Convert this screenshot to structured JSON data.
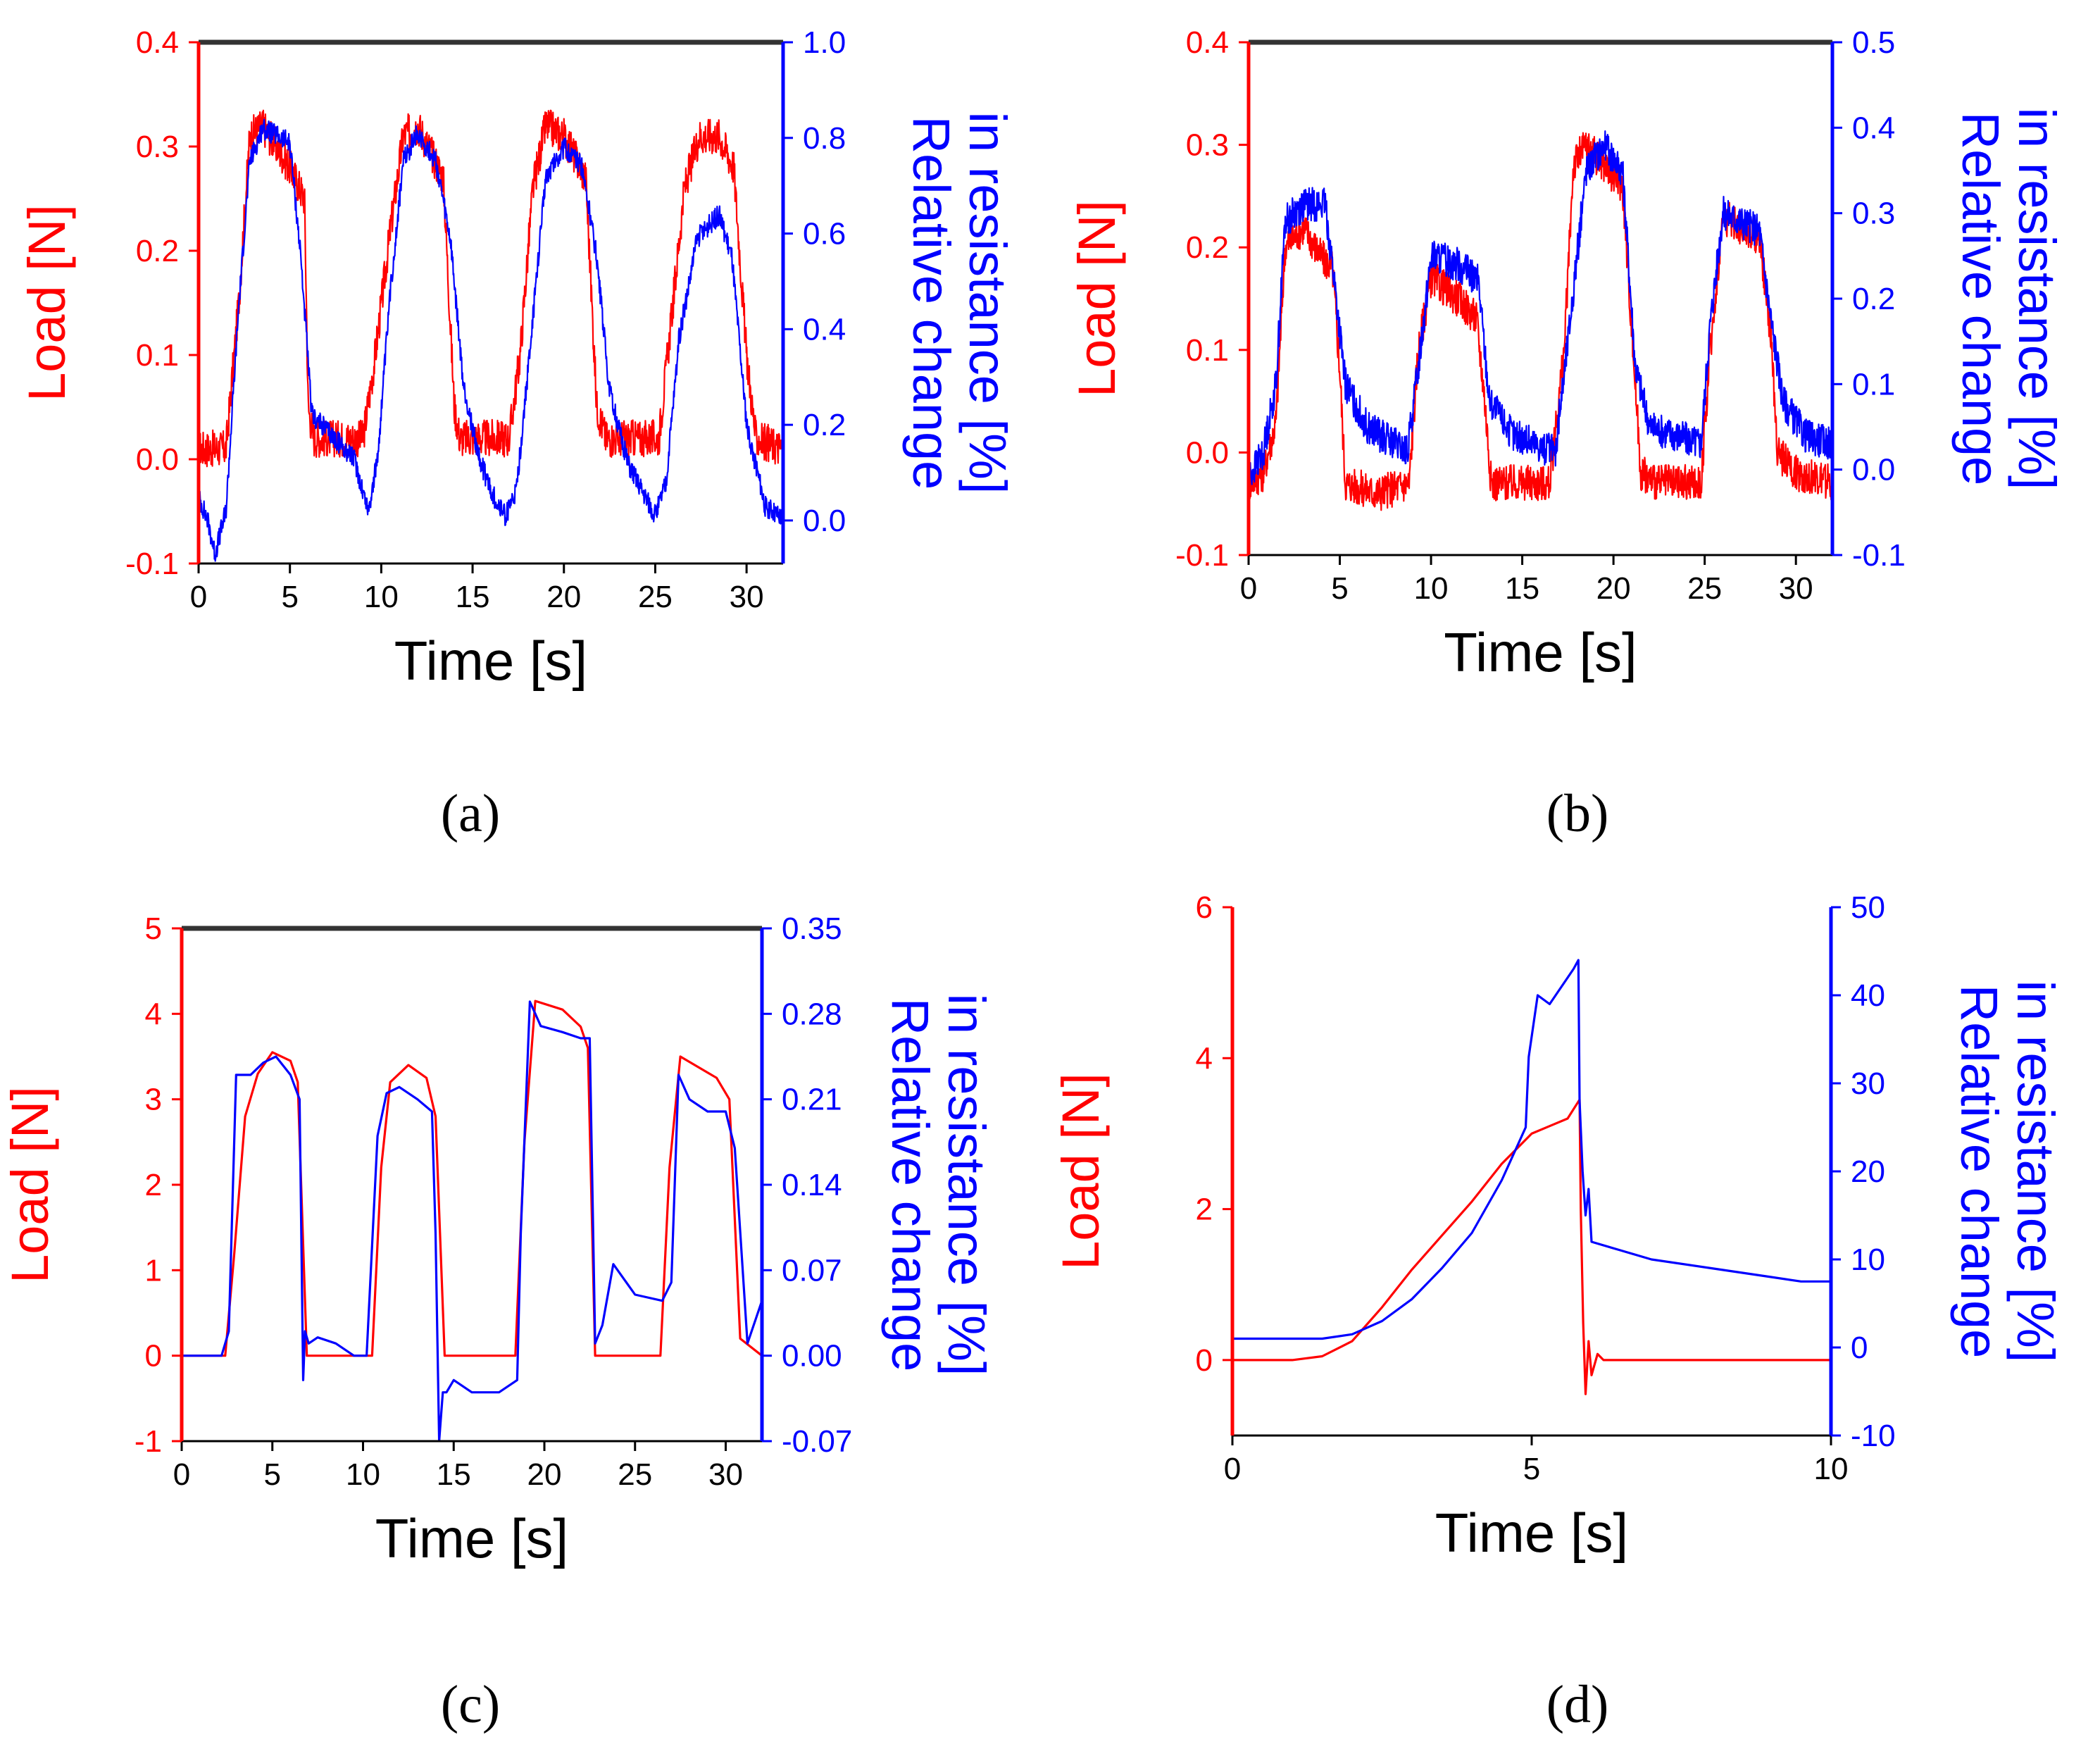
{
  "colors": {
    "load": "#ff0000",
    "resistance": "#0000ff",
    "axis": "#000000",
    "top_border": "#333333"
  },
  "chart_data": [
    {
      "id": "a",
      "type": "line",
      "caption": "(a)",
      "xlabel": "Time [s]",
      "ylabel_left": "Load [N]",
      "ylabel_right": [
        "Relative change",
        "in resistance [%]"
      ],
      "xlim": [
        0,
        32
      ],
      "ylim_left": [
        -0.1,
        0.4
      ],
      "ylim_right": [
        -0.09,
        1.0
      ],
      "x_ticks": [
        0,
        5,
        10,
        15,
        20,
        25,
        30
      ],
      "x_tick_labels": [
        "0",
        "5",
        "10",
        "15",
        "20",
        "25",
        "30"
      ],
      "y_left_ticks": [
        -0.1,
        0.0,
        0.1,
        0.2,
        0.3,
        0.4
      ],
      "y_left_tick_labels": [
        "-0.1",
        "0.0",
        "0.1",
        "0.2",
        "0.3",
        "0.4"
      ],
      "y_right_ticks": [
        0.0,
        0.2,
        0.4,
        0.6,
        0.8,
        1.0
      ],
      "y_right_tick_labels": [
        "0.0",
        "0.2",
        "0.4",
        "0.6",
        "0.8",
        "1.0"
      ],
      "grid": false,
      "series": [
        {
          "name": "Load",
          "axis": "left",
          "color": "#ff0000",
          "noise": 0.018,
          "x": [
            0,
            1.5,
            2.2,
            2.8,
            3.5,
            5.0,
            5.8,
            6.0,
            6.3,
            9.0,
            9.6,
            10.5,
            11.2,
            12.0,
            13.4,
            14.0,
            14.3,
            17.0,
            17.6,
            18.3,
            19.0,
            20.0,
            21.2,
            21.8,
            22.3,
            25.2,
            25.8,
            26.6,
            27.4,
            28.5,
            29.3,
            30.0,
            30.5,
            32.0
          ],
          "y": [
            0.01,
            0.01,
            0.15,
            0.31,
            0.32,
            0.28,
            0.25,
            0.05,
            0.02,
            0.02,
            0.09,
            0.22,
            0.31,
            0.32,
            0.27,
            0.05,
            0.02,
            0.02,
            0.1,
            0.26,
            0.32,
            0.31,
            0.27,
            0.05,
            0.02,
            0.02,
            0.12,
            0.26,
            0.31,
            0.31,
            0.28,
            0.1,
            0.02,
            0.01
          ]
        },
        {
          "name": "Relative change in resistance",
          "axis": "right",
          "color": "#0000ff",
          "noise": 0.022,
          "x": [
            0,
            0.5,
            0.9,
            1.5,
            2.2,
            2.8,
            3.5,
            5.0,
            5.6,
            6.2,
            7.0,
            8.5,
            9.3,
            9.8,
            10.5,
            11.2,
            12.0,
            13.0,
            13.8,
            14.5,
            15.3,
            16.0,
            16.8,
            17.4,
            18.2,
            19.0,
            20.0,
            21.0,
            21.8,
            22.5,
            23.5,
            25.0,
            25.6,
            26.3,
            27.3,
            28.5,
            29.2,
            30.0,
            31.0,
            32.0
          ],
          "y": [
            0.05,
            0.0,
            -0.07,
            0.02,
            0.45,
            0.75,
            0.82,
            0.79,
            0.55,
            0.22,
            0.19,
            0.13,
            0.02,
            0.13,
            0.48,
            0.75,
            0.81,
            0.75,
            0.58,
            0.28,
            0.14,
            0.06,
            0.01,
            0.06,
            0.38,
            0.72,
            0.78,
            0.74,
            0.55,
            0.27,
            0.12,
            0.01,
            0.08,
            0.38,
            0.59,
            0.64,
            0.55,
            0.2,
            0.03,
            0.0
          ]
        }
      ]
    },
    {
      "id": "b",
      "type": "line",
      "caption": "(b)",
      "xlabel": "Time [s]",
      "ylabel_left": "Load [N]",
      "ylabel_right": [
        "Relative change",
        "in resistance [%]"
      ],
      "xlim": [
        0,
        32
      ],
      "ylim_left": [
        -0.1,
        0.4
      ],
      "ylim_right": [
        -0.1,
        0.5
      ],
      "x_ticks": [
        0,
        5,
        10,
        15,
        20,
        25,
        30
      ],
      "x_tick_labels": [
        "0",
        "5",
        "10",
        "15",
        "20",
        "25",
        "30"
      ],
      "y_left_ticks": [
        -0.1,
        0.0,
        0.1,
        0.2,
        0.3,
        0.4
      ],
      "y_left_tick_labels": [
        "-0.1",
        "0.0",
        "0.1",
        "0.2",
        "0.3",
        "0.4"
      ],
      "y_right_ticks": [
        -0.1,
        0.0,
        0.1,
        0.2,
        0.3,
        0.4,
        0.5
      ],
      "y_right_tick_labels": [
        "-0.1",
        "0.0",
        "0.1",
        "0.2",
        "0.3",
        "0.4",
        "0.5"
      ],
      "grid": false,
      "series": [
        {
          "name": "Load",
          "axis": "left",
          "color": "#ff0000",
          "noise": 0.018,
          "x": [
            0,
            0.8,
            1.5,
            2.0,
            3.0,
            4.0,
            4.6,
            5.0,
            5.3,
            7.0,
            8.8,
            9.3,
            10.0,
            11.5,
            12.5,
            12.9,
            13.3,
            16.5,
            17.3,
            17.8,
            18.5,
            19.5,
            20.5,
            21.0,
            21.5,
            22.5,
            24.8,
            25.3,
            26.0,
            27.0,
            28.0,
            28.6,
            29.0,
            30.0,
            32.0
          ],
          "y": [
            -0.03,
            -0.02,
            0.03,
            0.2,
            0.22,
            0.19,
            0.18,
            0.08,
            -0.03,
            -0.04,
            -0.03,
            0.1,
            0.17,
            0.15,
            0.13,
            0.06,
            -0.03,
            -0.03,
            0.1,
            0.28,
            0.3,
            0.28,
            0.26,
            0.12,
            -0.02,
            -0.03,
            -0.03,
            0.1,
            0.23,
            0.22,
            0.21,
            0.12,
            0.0,
            -0.02,
            -0.03
          ]
        },
        {
          "name": "Relative change in resistance",
          "axis": "right",
          "color": "#0000ff",
          "noise": 0.02,
          "x": [
            0,
            0.8,
            1.5,
            2.0,
            3.0,
            4.2,
            4.7,
            5.3,
            6.5,
            8.7,
            9.3,
            10.0,
            11.5,
            12.6,
            13.2,
            14.5,
            16.8,
            17.5,
            18.5,
            19.5,
            20.5,
            21.2,
            22.0,
            24.8,
            25.3,
            26.0,
            27.0,
            28.0,
            28.6,
            29.3,
            30.5,
            32.0
          ],
          "y": [
            -0.01,
            0.02,
            0.1,
            0.29,
            0.31,
            0.31,
            0.22,
            0.1,
            0.05,
            0.02,
            0.12,
            0.25,
            0.24,
            0.22,
            0.08,
            0.04,
            0.02,
            0.15,
            0.35,
            0.38,
            0.35,
            0.12,
            0.05,
            0.03,
            0.17,
            0.3,
            0.29,
            0.28,
            0.18,
            0.08,
            0.04,
            0.03
          ]
        }
      ]
    },
    {
      "id": "c",
      "type": "line",
      "caption": "(c)",
      "xlabel": "Time [s]",
      "ylabel_left": "Load [N]",
      "ylabel_right": [
        "Relative change",
        "in resistance [%]"
      ],
      "xlim": [
        0,
        32
      ],
      "ylim_left": [
        -1,
        5
      ],
      "ylim_right": [
        -0.07,
        0.35
      ],
      "x_ticks": [
        0,
        5,
        10,
        15,
        20,
        25,
        30
      ],
      "x_tick_labels": [
        "0",
        "5",
        "10",
        "15",
        "20",
        "25",
        "30"
      ],
      "y_left_ticks": [
        -1,
        0,
        1,
        2,
        3,
        4,
        5
      ],
      "y_left_tick_labels": [
        "-1",
        "0",
        "1",
        "2",
        "3",
        "4",
        "5"
      ],
      "y_right_ticks": [
        -0.07,
        0.0,
        0.07,
        0.14,
        0.21,
        0.28,
        0.35
      ],
      "y_right_tick_labels": [
        "-0.07",
        "0.00",
        "0.07",
        "0.14",
        "0.21",
        "0.28",
        "0.35"
      ],
      "grid": false,
      "series": [
        {
          "name": "Load",
          "axis": "left",
          "color": "#ff0000",
          "noise": 0,
          "x": [
            0,
            2.4,
            2.9,
            3.5,
            4.2,
            5.0,
            6.0,
            6.4,
            6.9,
            10.5,
            11.0,
            11.5,
            12.5,
            13.5,
            14.0,
            14.5,
            18.4,
            18.9,
            19.5,
            21.0,
            22.0,
            22.4,
            22.8,
            26.4,
            26.9,
            27.5,
            29.5,
            30.2,
            30.8,
            32.0
          ],
          "y": [
            0,
            0,
            1.2,
            2.8,
            3.3,
            3.55,
            3.45,
            3.2,
            0,
            0,
            2.2,
            3.2,
            3.4,
            3.25,
            2.8,
            0,
            0,
            2.5,
            4.15,
            4.05,
            3.85,
            3.6,
            0,
            0,
            2.2,
            3.5,
            3.25,
            3.0,
            0.2,
            0
          ]
        },
        {
          "name": "Relative change in resistance",
          "axis": "right",
          "color": "#0000ff",
          "noise": 0,
          "x": [
            0,
            1.5,
            2.2,
            2.6,
            3.0,
            3.8,
            4.5,
            5.2,
            6.0,
            6.5,
            6.7,
            6.8,
            7.0,
            7.5,
            8.5,
            9.5,
            10.2,
            10.8,
            11.3,
            12.0,
            13.0,
            13.8,
            14.0,
            14.2,
            14.4,
            14.6,
            15.0,
            16.0,
            17.5,
            18.5,
            18.7,
            19.2,
            19.8,
            21.0,
            22.0,
            22.5,
            22.8,
            23.2,
            23.8,
            25.0,
            26.5,
            27.0,
            27.4,
            28.0,
            29.0,
            30.0,
            30.5,
            31.2,
            32.0
          ],
          "y": [
            0.0,
            0.0,
            0.0,
            0.02,
            0.23,
            0.23,
            0.24,
            0.245,
            0.23,
            0.21,
            -0.02,
            0.02,
            0.01,
            0.015,
            0.01,
            0.0,
            0.0,
            0.18,
            0.215,
            0.22,
            0.21,
            0.2,
            0.1,
            -0.07,
            -0.03,
            -0.03,
            -0.02,
            -0.03,
            -0.03,
            -0.02,
            0.1,
            0.29,
            0.27,
            0.265,
            0.26,
            0.26,
            0.01,
            0.025,
            0.075,
            0.05,
            0.045,
            0.06,
            0.23,
            0.21,
            0.2,
            0.2,
            0.17,
            0.01,
            0.045
          ]
        }
      ]
    },
    {
      "id": "d",
      "type": "line",
      "caption": "(d)",
      "xlabel": "Time [s]",
      "ylabel_left": "Load [N]",
      "ylabel_right": [
        "Relative change",
        "in resistance [%]"
      ],
      "xlim": [
        0,
        10
      ],
      "ylim_left": [
        -1,
        6
      ],
      "ylim_right": [
        -10,
        50
      ],
      "x_ticks": [
        0,
        5,
        10
      ],
      "x_tick_labels": [
        "0",
        "5",
        "10"
      ],
      "y_left_ticks": [
        0,
        2,
        4,
        6
      ],
      "y_left_tick_labels": [
        "0",
        "2",
        "4",
        "6"
      ],
      "y_right_ticks": [
        -10,
        0,
        10,
        20,
        30,
        40,
        50
      ],
      "y_right_tick_labels": [
        "-10",
        "0",
        "10",
        "20",
        "30",
        "40",
        "50"
      ],
      "grid": false,
      "series": [
        {
          "name": "Load",
          "axis": "left",
          "color": "#ff0000",
          "noise": 0,
          "x": [
            0,
            1.0,
            1.5,
            2.0,
            2.5,
            3.0,
            3.5,
            4.0,
            4.5,
            5.0,
            5.3,
            5.6,
            5.8,
            5.82,
            5.86,
            5.9,
            5.95,
            6.0,
            6.1,
            6.2,
            6.5,
            8.0,
            10.0
          ],
          "y": [
            0,
            0,
            0.05,
            0.25,
            0.7,
            1.2,
            1.65,
            2.1,
            2.6,
            3.0,
            3.1,
            3.2,
            3.45,
            2.0,
            0.5,
            -0.45,
            0.25,
            -0.2,
            0.08,
            0,
            0,
            0,
            0
          ]
        },
        {
          "name": "Relative change in resistance",
          "axis": "right",
          "color": "#0000ff",
          "noise": 0,
          "x": [
            0,
            1.5,
            2.0,
            2.5,
            3.0,
            3.5,
            4.0,
            4.5,
            4.9,
            4.95,
            5.1,
            5.3,
            5.5,
            5.7,
            5.78,
            5.8,
            5.85,
            5.9,
            5.95,
            6.0,
            6.5,
            7.0,
            8.0,
            9.0,
            9.5,
            10.0
          ],
          "y": [
            1,
            1,
            1.5,
            3,
            5.5,
            9,
            13,
            19,
            25,
            33,
            40,
            39,
            41,
            43,
            44,
            28,
            20,
            15,
            18,
            12,
            11,
            10,
            9,
            8,
            7.5,
            7.5
          ]
        }
      ]
    }
  ]
}
